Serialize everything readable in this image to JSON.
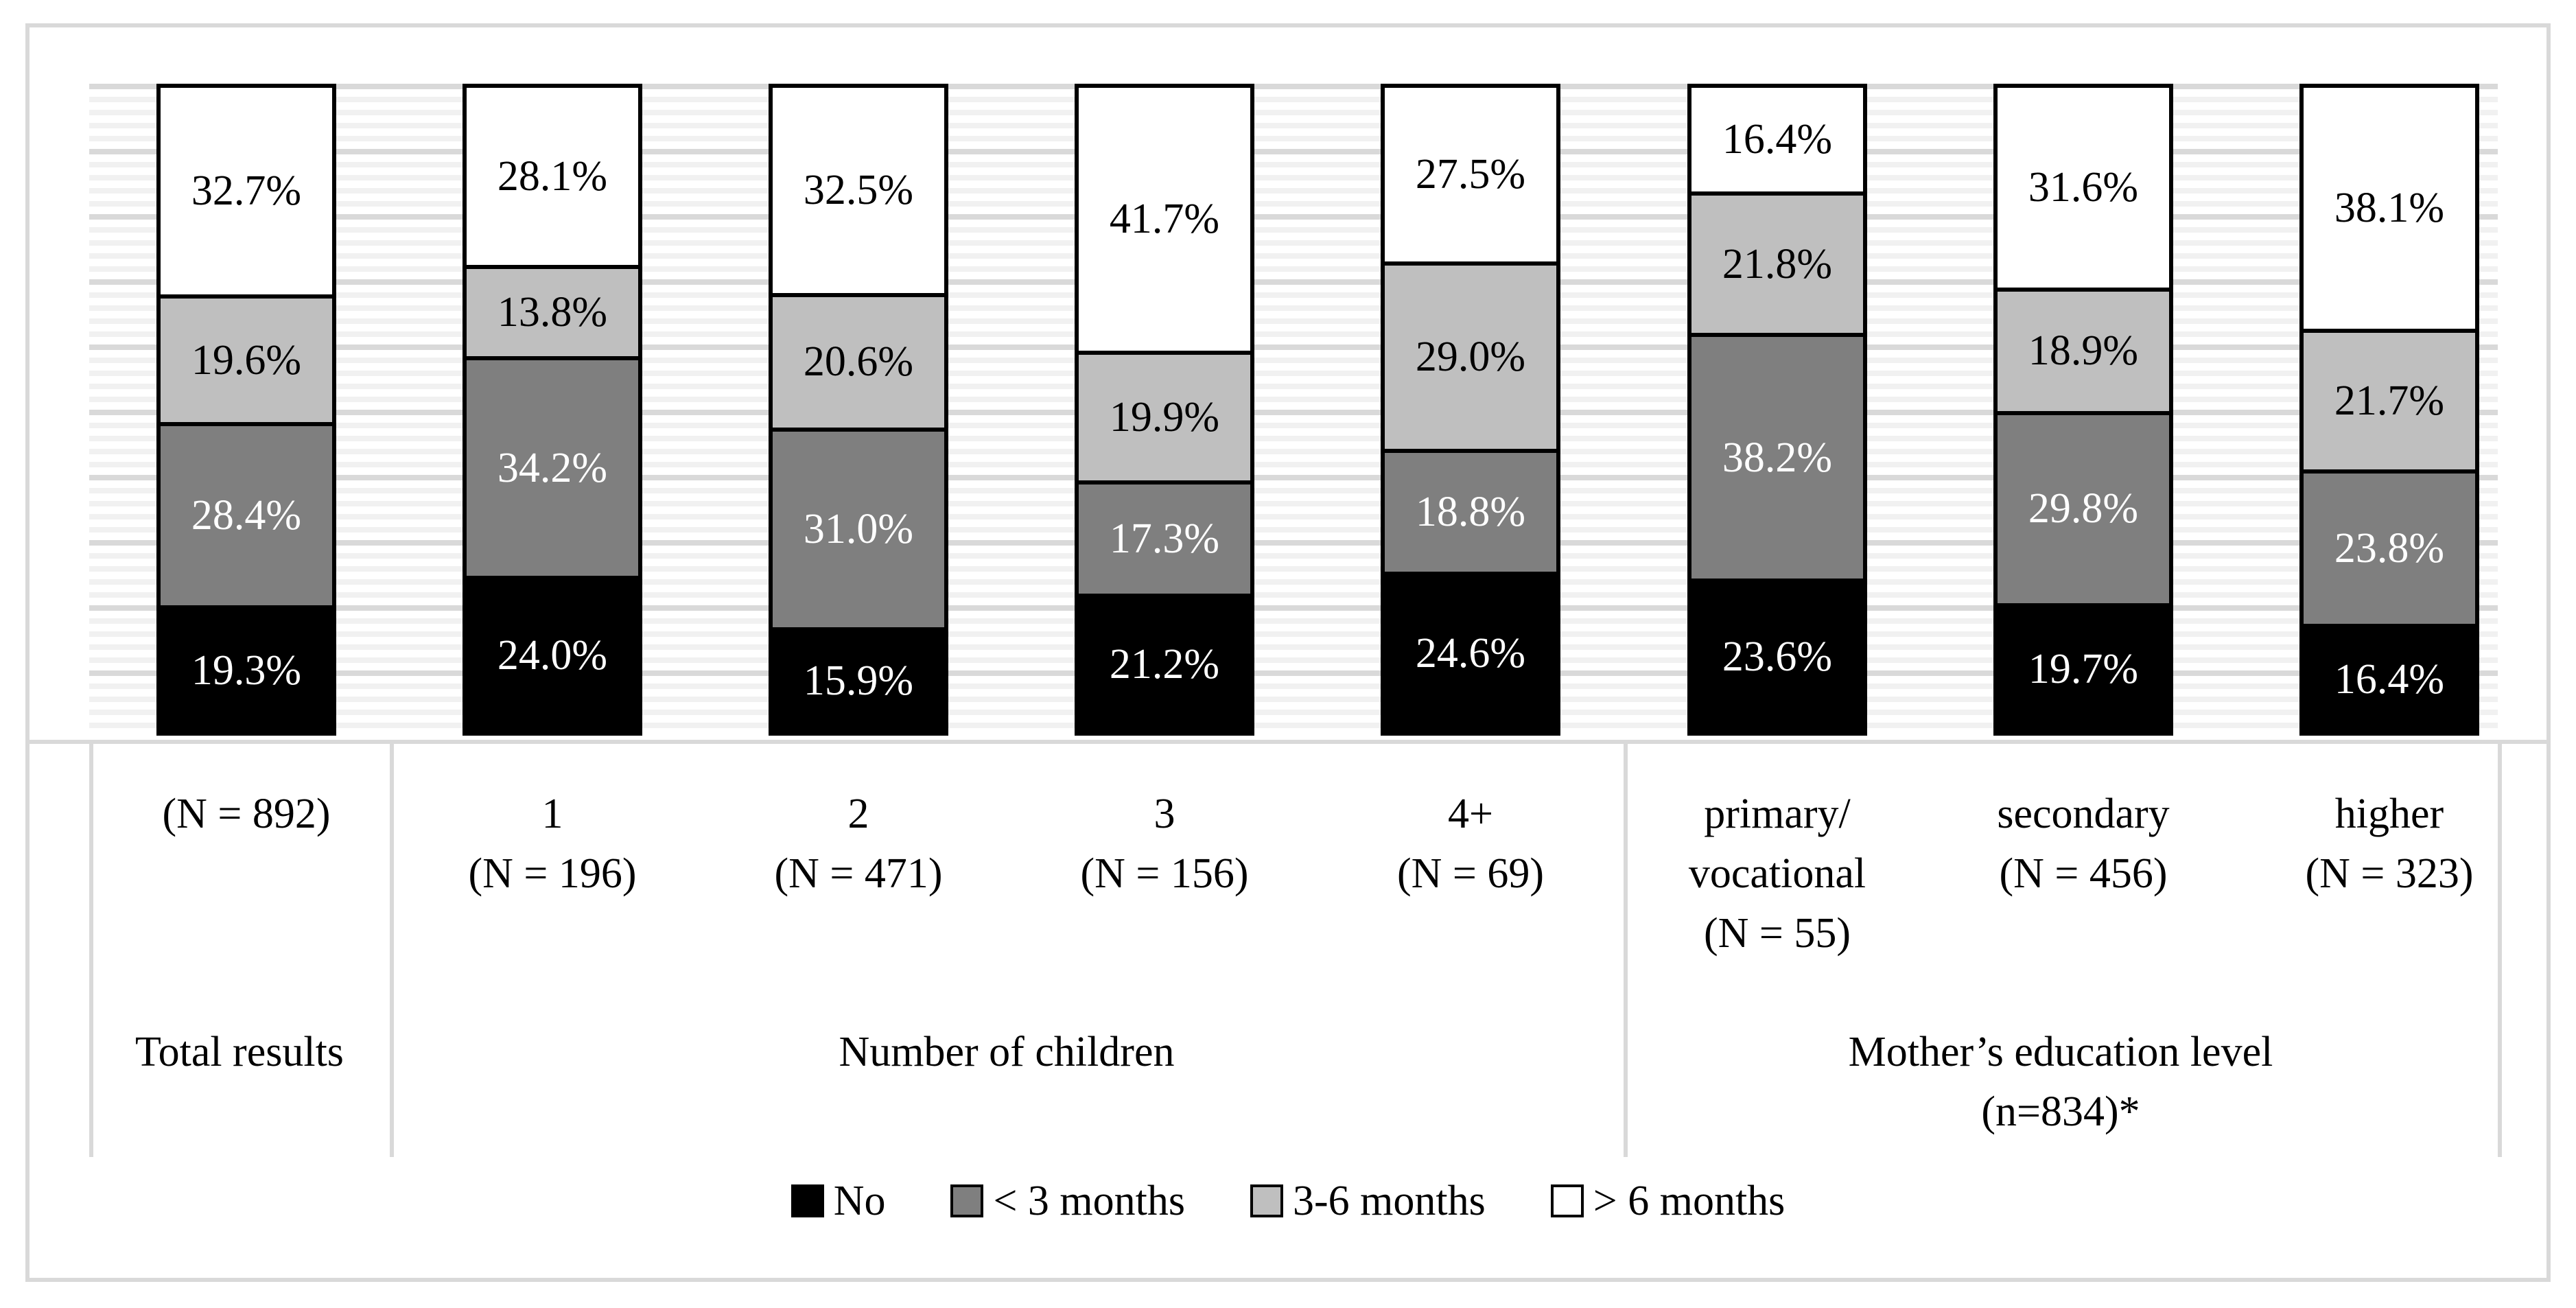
{
  "chart_data": {
    "type": "bar",
    "stacked": true,
    "value_unit": "%",
    "ylim": [
      0,
      100
    ],
    "grid": {
      "minor_interval_pct": 2,
      "major_interval_pct": 10,
      "grid_on": true
    },
    "legend_position": "bottom",
    "series": [
      {
        "name": "No",
        "color": "#000000",
        "label_color": "#ffffff"
      },
      {
        "name": "< 3 months",
        "color": "#7f7f7f",
        "label_color": "#ffffff"
      },
      {
        "name": "3-6 months",
        "color": "#bfbfbf",
        "label_color": "#000000"
      },
      {
        "name": "> 6 months",
        "color": "#ffffff",
        "label_color": "#000000"
      }
    ],
    "groups": [
      {
        "label_lines": [
          "Total results"
        ],
        "columns": [
          {
            "tick_lines": [
              "(N = 892)"
            ],
            "values": [
              19.3,
              28.4,
              19.6,
              32.7
            ]
          }
        ]
      },
      {
        "label_lines": [
          "Number of children"
        ],
        "columns": [
          {
            "tick_lines": [
              "1",
              "(N = 196)"
            ],
            "values": [
              24.0,
              34.2,
              13.8,
              28.1
            ]
          },
          {
            "tick_lines": [
              "2",
              "(N = 471)"
            ],
            "values": [
              15.9,
              31.0,
              20.6,
              32.5
            ]
          },
          {
            "tick_lines": [
              "3",
              "(N = 156)"
            ],
            "values": [
              21.2,
              17.3,
              19.9,
              41.7
            ]
          },
          {
            "tick_lines": [
              "4+",
              "(N = 69)"
            ],
            "values": [
              24.6,
              18.8,
              29.0,
              27.5
            ]
          }
        ]
      },
      {
        "label_lines": [
          "Mother’s education level",
          "(n=834)*"
        ],
        "columns": [
          {
            "tick_lines": [
              "primary/",
              "vocational",
              "(N = 55)"
            ],
            "values": [
              23.6,
              38.2,
              21.8,
              16.4
            ]
          },
          {
            "tick_lines": [
              "secondary",
              "(N = 456)"
            ],
            "values": [
              19.7,
              29.8,
              18.9,
              31.6
            ]
          },
          {
            "tick_lines": [
              "higher",
              "(N = 323)"
            ],
            "values": [
              16.4,
              23.8,
              21.7,
              38.1
            ]
          }
        ]
      }
    ],
    "colors": {
      "gridline_major": "#d9d9d9",
      "gridline_minor": "#f1f1f1",
      "axis_line": "#d9d9d9",
      "figure_border": "#d9d9d9",
      "bar_border": "#000000"
    }
  }
}
